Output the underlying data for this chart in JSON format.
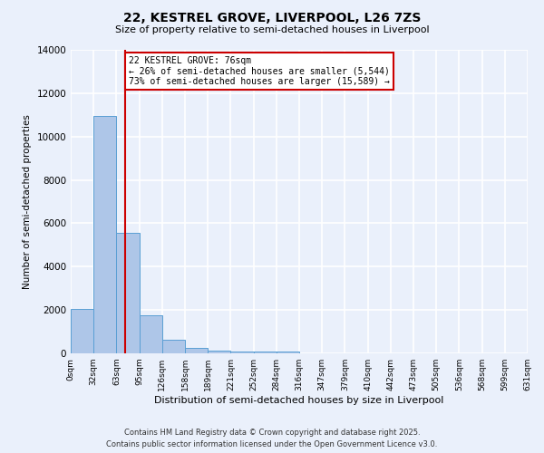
{
  "title1": "22, KESTREL GROVE, LIVERPOOL, L26 7ZS",
  "title2": "Size of property relative to semi-detached houses in Liverpool",
  "xlabel": "Distribution of semi-detached houses by size in Liverpool",
  "ylabel": "Number of semi-detached properties",
  "bar_color": "#aec6e8",
  "bar_edge_color": "#5a9fd4",
  "background_color": "#eaf0fb",
  "grid_color": "#ffffff",
  "bin_labels": [
    "0sqm",
    "32sqm",
    "63sqm",
    "95sqm",
    "126sqm",
    "158sqm",
    "189sqm",
    "221sqm",
    "252sqm",
    "284sqm",
    "316sqm",
    "347sqm",
    "379sqm",
    "410sqm",
    "442sqm",
    "473sqm",
    "505sqm",
    "536sqm",
    "568sqm",
    "599sqm",
    "631sqm"
  ],
  "bar_heights": [
    2050,
    10950,
    5550,
    1750,
    620,
    270,
    140,
    100,
    80,
    100,
    0,
    0,
    0,
    0,
    0,
    0,
    0,
    0,
    0,
    0
  ],
  "ylim": [
    0,
    14000
  ],
  "yticks": [
    0,
    2000,
    4000,
    6000,
    8000,
    10000,
    12000,
    14000
  ],
  "red_line_x": 2.38,
  "annotation_title": "22 KESTREL GROVE: 76sqm",
  "annotation_line1": "← 26% of semi-detached houses are smaller (5,544)",
  "annotation_line2": "73% of semi-detached houses are larger (15,589) →",
  "footer_line1": "Contains HM Land Registry data © Crown copyright and database right 2025.",
  "footer_line2": "Contains public sector information licensed under the Open Government Licence v3.0.",
  "red_line_color": "#cc0000",
  "annotation_box_edge": "#cc0000"
}
